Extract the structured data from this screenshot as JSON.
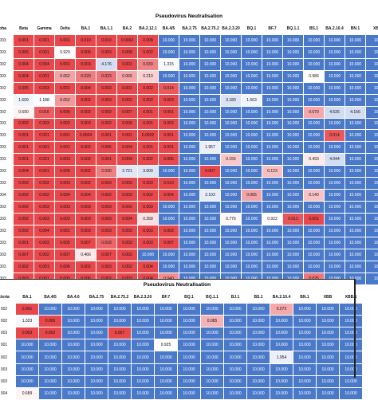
{
  "colors": {
    "red_strong": "#e8484c",
    "red_light": "#f7b9bb",
    "blue_strong": "#4a79c9",
    "blue_light": "#b8c9eb",
    "neutral": "#ffffff"
  },
  "table1": {
    "title": "Pseudovirus Neutralisation",
    "headers": [
      "pha",
      "Beta",
      "Gamma",
      "Delta",
      "BA.1",
      "BA.1.1",
      "BA.2",
      "BA.2.12.1",
      "BA.4/5",
      "BA.2.75",
      "BA.2.75.2",
      "BA.2.3.20",
      "BQ.1",
      "BF.7",
      "BQ.1.1",
      "BS.1",
      "BA.2.10.4",
      "BN.1",
      "XB"
    ],
    "rows": [
      [
        "003",
        "0.001",
        "0.001",
        "0.001",
        "0.010",
        "0.010",
        "0.0002",
        "0.008",
        "10.000",
        "10.000",
        "10.000",
        "10.000",
        "10.000",
        "10.000",
        "10.000",
        "10.000",
        "10.000",
        "10.000",
        "10"
      ],
      [
        "003",
        "0.006",
        "0.001",
        "0.929",
        "0.006",
        "0.003",
        "0.008",
        "0.002",
        "10.000",
        "10.000",
        "10.000",
        "10.000",
        "10.000",
        "10.000",
        "10.000",
        "10.000",
        "10.000",
        "10.000",
        "10"
      ],
      [
        "002",
        "0.004",
        "0.004",
        "0.001",
        "0.003",
        "4.176",
        "0.001",
        "0.033",
        "1.315",
        "10.000",
        "10.000",
        "10.000",
        "10.000",
        "10.000",
        "10.000",
        "10.000",
        "10.000",
        "10.000",
        "10"
      ],
      [
        "003",
        "0.004",
        "0.001",
        "0.062",
        "0.029",
        "0.023",
        "0.066",
        "0.210",
        "10.000",
        "10.000",
        "10.000",
        "10.000",
        "10.000",
        "10.000",
        "10.000",
        "0.986",
        "10.000",
        "10.000",
        "10"
      ],
      [
        "002",
        "0.005",
        "0.003",
        "0.001",
        "0.004",
        "0.003",
        "0.001",
        "0.002",
        "0.014",
        "10.000",
        "10.000",
        "10.000",
        "10.000",
        "10.000",
        "10.000",
        "10.000",
        "10.000",
        "10.000",
        "10"
      ],
      [
        "002",
        "1.609",
        "1.188",
        "0.052",
        "0.002",
        "0.003",
        "0.002",
        "0.002",
        "0.003",
        "10.000",
        "10.000",
        "3.180",
        "1.563",
        "10.000",
        "10.000",
        "10.000",
        "10.000",
        "10.000",
        "10"
      ],
      [
        "002",
        "0.690",
        "0.016",
        "0.005",
        "0.002",
        "0.002",
        "0.007",
        "0.001",
        "0.001",
        "10.000",
        "10.000",
        "10.000",
        "10.000",
        "10.000",
        "10.000",
        "0.070",
        "4.526",
        "4.156",
        "10"
      ],
      [
        "003",
        "0.002",
        "0.003",
        "0.002",
        "0.003",
        "0.002",
        "0.006",
        "0.001",
        "0.003",
        "10.000",
        "10.000",
        "10.000",
        "10.000",
        "10.000",
        "10.000",
        "10.000",
        "10.000",
        "10.000",
        "10"
      ],
      [
        "003",
        "0.001",
        "0.001",
        "0.001",
        "0.0004",
        "0.001",
        "0.001",
        "0.0002",
        "0.001",
        "10.000",
        "10.000",
        "10.000",
        "10.000",
        "10.000",
        "10.000",
        "10.000",
        "0.014",
        "10.000",
        "10"
      ],
      [
        "003",
        "0.001",
        "0.001",
        "0.001",
        "0.002",
        "0.006",
        "0.004",
        "0.001",
        "0.001",
        "10.000",
        "1.957",
        "10.000",
        "10.000",
        "10.000",
        "10.000",
        "10.000",
        "10.000",
        "10.000",
        "10"
      ],
      [
        "003",
        "0.001",
        "0.001",
        "0.003",
        "0.002",
        "0.001",
        "0.004",
        "0.002",
        "0.006",
        "10.000",
        "10.000",
        "0.156",
        "10.000",
        "10.000",
        "10.000",
        "0.493",
        "4.044",
        "10.000",
        "10"
      ],
      [
        "003",
        "0.004",
        "0.001",
        "0.006",
        "0.002",
        "0.030",
        "2.721",
        "3.000",
        "10.000",
        "10.000",
        "0.007",
        "10.000",
        "10.000",
        "0.123",
        "10.000",
        "10.000",
        "10.000",
        "10.000",
        "10"
      ],
      [
        "003",
        "0.002",
        "0.002",
        "0.003",
        "0.002",
        "0.003",
        "0.003",
        "0.003",
        "0.010",
        "10.000",
        "10.000",
        "10.000",
        "10.000",
        "10.000",
        "10.000",
        "10.000",
        "10.000",
        "10.000",
        "10"
      ],
      [
        "004",
        "0.002",
        "0.002",
        "0.004",
        "0.004",
        "0.002",
        "0.003",
        "0.002",
        "0.004",
        "10.000",
        "2.103",
        "10.000",
        "0.065",
        "10.000",
        "10.000",
        "0.140",
        "10.000",
        "10.000",
        "10"
      ],
      [
        "003",
        "0.002",
        "0.003",
        "0.003",
        "0.003",
        "0.003",
        "0.002",
        "0.003",
        "10.000",
        "10.000",
        "10.000",
        "10.000",
        "10.000",
        "10.000",
        "10.000",
        "10.000",
        "10.000",
        "10.000",
        "10"
      ],
      [
        "002",
        "0.002",
        "0.003",
        "0.002",
        "0.003",
        "0.003",
        "0.004",
        "0.358",
        "10.000",
        "10.000",
        "10.000",
        "0.776",
        "10.000",
        "0.922",
        "0.013",
        "0.001",
        "10.000",
        "10.000",
        "10"
      ],
      [
        "003",
        "0.002",
        "0.004",
        "0.001",
        "0.003",
        "0.003",
        "0.003",
        "0.003",
        "0.003",
        "10.000",
        "10.000",
        "10.000",
        "10.000",
        "10.000",
        "10.000",
        "10.000",
        "10.000",
        "10.000",
        "10"
      ],
      [
        "003",
        "0.001",
        "0.003",
        "0.005",
        "0.007",
        "0.018",
        "0.003",
        "0.003",
        "0.007",
        "10.000",
        "10.000",
        "10.000",
        "10.000",
        "10.000",
        "10.000",
        "10.000",
        "10.000",
        "10.000",
        "10"
      ],
      [
        "003",
        "0.007",
        "0.002",
        "0.007",
        "0.466",
        "0.007",
        "0.003",
        "10.000",
        "10.000",
        "10.000",
        "10.000",
        "10.000",
        "10.000",
        "10.000",
        "10.000",
        "10.000",
        "10.000",
        "10.000",
        "10"
      ],
      [
        "003",
        "0.002",
        "0.001",
        "0.006",
        "0.002",
        "0.003",
        "0.002",
        "0.004",
        "10.000",
        "10.000",
        "10.000",
        "10.000",
        "10.000",
        "10.000",
        "10.000",
        "10.000",
        "10.000",
        "10.000",
        "10"
      ],
      [
        "003",
        "0.003",
        "0.001",
        "0.005",
        "0.006",
        "0.002",
        "0.003",
        "0.004",
        "0.040",
        "10.000",
        "10.000",
        "10.000",
        "10.000",
        "10.000",
        "10.000",
        "0.025",
        "10.000",
        "10.000",
        "10"
      ]
    ]
  },
  "table2": {
    "title": "Pseudovirus Neutralisation",
    "headers": [
      "ctoria",
      "BA.1",
      "BA.4/5",
      "BA.4.6",
      "BA.2.75",
      "BA.2.75.2",
      "BA.2.3.20",
      "BF.7",
      "BQ.1",
      "BQ.1.1",
      "BJ.1",
      "BS.1",
      "BA.2.10.4",
      "BN.1",
      "XBB",
      "XBB.1"
    ],
    "rows": [
      [
        "002",
        "0.001",
        "10.000",
        "10.000",
        "10.000",
        "10.000",
        "10.000",
        "10.000",
        "10.000",
        "10.000",
        "10.000",
        "10.000",
        "0.072",
        "10.000",
        "10.000",
        "10.000"
      ],
      [
        "002",
        "1.333",
        "0.006",
        "10.000",
        "10.000",
        "10.000",
        "10.000",
        "10.000",
        "10.000",
        "0.085",
        "10.000",
        "10.000",
        "10.000",
        "10.000",
        "10.000",
        "10.000"
      ],
      [
        "003",
        "0.003",
        "0.002",
        "10.000",
        "10.000",
        "0.007",
        "10.000",
        "10.000",
        "10.000",
        "10.000",
        "10.000",
        "10.000",
        "10.000",
        "10.000",
        "10.000",
        "10.000"
      ],
      [
        "001",
        "10.000",
        "10.000",
        "10.000",
        "10.000",
        "10.000",
        "10.000",
        "0.925",
        "10.000",
        "10.000",
        "10.000",
        "10.000",
        "10.000",
        "10.000",
        "10.000",
        "10.000"
      ],
      [
        "002",
        "10.000",
        "10.000",
        "10.000",
        "10.000",
        "10.000",
        "10.000",
        "10.000",
        "10.000",
        "10.000",
        "10.000",
        "10.000",
        "1.954",
        "10.000",
        "10.000",
        "10.000"
      ],
      [
        "003",
        "10.000",
        "10.000",
        "10.000",
        "10.000",
        "10.000",
        "10.000",
        "10.000",
        "10.000",
        "10.000",
        "10.000",
        "10.000",
        "10.000",
        "10.000",
        "10.000",
        "10.000"
      ],
      [
        "003",
        "10.000",
        "10.000",
        "10.000",
        "10.000",
        "10.000",
        "10.000",
        "10.000",
        "10.000",
        "10.000",
        "10.000",
        "10.000",
        "10.000",
        "10.000",
        "10.000",
        "10.000"
      ],
      [
        "004",
        "0.689",
        "10.000",
        "10.000",
        "10.000",
        "10.000",
        "10.000",
        "10.000",
        "10.000",
        "10.000",
        "10.000",
        "10.000",
        "10.000",
        "10.000",
        "10.000",
        "10.000"
      ]
    ]
  }
}
